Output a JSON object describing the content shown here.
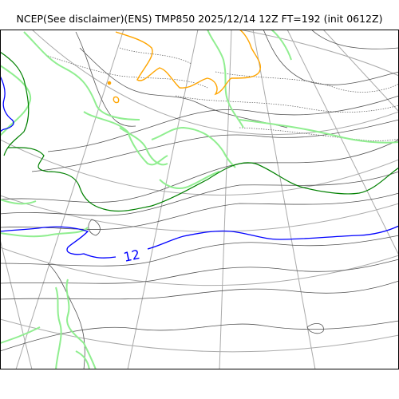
{
  "title": "NCEP(See disclaimer)(ENS) TMP850 2025/12/14 12Z FT=192 (init 0612Z)",
  "colors": {
    "coastline": "#90ee90",
    "graticule": "#aaaaaa",
    "isotherm_minor": "#555555",
    "isotherm_green": "#008000",
    "isotherm_blue": "#0000ff",
    "isotherm_orange": "#ffa500"
  },
  "contour_labels": [
    "12"
  ]
}
